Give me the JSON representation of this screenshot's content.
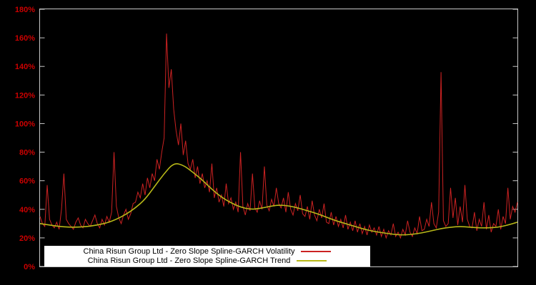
{
  "chart": {
    "background": "#000000",
    "axis_color": "#c8c8c8",
    "tick_label_color": "#cc0000",
    "y_tick_labels": [
      "0%",
      "20%",
      "40%",
      "60%",
      "80%",
      "100%",
      "120%",
      "140%",
      "160%",
      "180%"
    ],
    "legend": {
      "background": "#ffffff",
      "text_color": "#000000",
      "entries": [
        {
          "label": "China Risun Group Ltd - Zero Slope Spline-GARCH Volatility",
          "color": "#cc2222"
        },
        {
          "label": "China Risun Group Ltd - Zero Slope Spline-GARCH Trend",
          "color": "#b8b818"
        }
      ]
    }
  },
  "chart_data": {
    "type": "line",
    "title": "",
    "xlabel": "",
    "ylabel": "",
    "x_range": [
      0,
      100
    ],
    "ylim": [
      0,
      180
    ],
    "y_tick_step": 20,
    "y_unit": "%",
    "grid": false,
    "x_tick_labels_visible": false,
    "legend_position": "bottom-center",
    "series": [
      {
        "name": "China Risun Group Ltd - Zero Slope Spline-GARCH Volatility",
        "color": "#cc2222",
        "style": "jagged",
        "values": [
          35,
          30,
          28,
          57,
          33,
          29,
          27,
          31,
          26,
          40,
          65,
          33,
          30,
          28,
          26,
          31,
          34,
          29,
          27,
          33,
          30,
          28,
          32,
          36,
          30,
          27,
          33,
          29,
          35,
          31,
          38,
          80,
          42,
          34,
          30,
          36,
          40,
          33,
          37,
          44,
          45,
          52,
          48,
          58,
          50,
          62,
          55,
          65,
          60,
          75,
          68,
          80,
          90,
          163,
          125,
          138,
          110,
          95,
          85,
          100,
          78,
          88,
          72,
          68,
          75,
          62,
          70,
          58,
          65,
          55,
          60,
          52,
          72,
          48,
          55,
          45,
          50,
          42,
          58,
          44,
          48,
          40,
          45,
          38,
          80,
          42,
          36,
          44,
          39,
          65,
          41,
          38,
          46,
          40,
          70,
          43,
          39,
          47,
          42,
          55,
          44,
          41,
          48,
          38,
          52,
          40,
          36,
          44,
          39,
          50,
          37,
          35,
          42,
          33,
          46,
          36,
          32,
          40,
          34,
          44,
          31,
          30,
          38,
          29,
          35,
          28,
          33,
          27,
          36,
          26,
          31,
          25,
          32,
          24,
          30,
          23,
          28,
          22,
          29,
          24,
          27,
          22,
          28,
          21,
          26,
          20,
          25,
          22,
          30,
          21,
          24,
          20,
          26,
          22,
          32,
          24,
          21,
          27,
          23,
          35,
          25,
          26,
          33,
          28,
          45,
          30,
          27,
          38,
          136,
          32,
          28,
          30,
          55,
          34,
          48,
          29,
          42,
          31,
          57,
          33,
          28,
          27,
          38,
          25,
          33,
          28,
          45,
          26,
          36,
          24,
          30,
          28,
          40,
          26,
          35,
          30,
          55,
          33,
          42,
          38,
          45
        ]
      },
      {
        "name": "China Risun Group Ltd - Zero Slope Spline-GARCH Trend",
        "color": "#b8b818",
        "style": "smooth",
        "values": [
          30,
          29,
          28,
          27.5,
          27.5,
          28,
          29,
          30.5,
          33,
          36.5,
          41,
          47,
          56,
          65,
          72.5,
          71,
          66,
          60.5,
          54,
          48.5,
          44.5,
          41.5,
          40,
          40.5,
          42,
          43,
          42.5,
          41,
          39,
          37,
          34.5,
          32,
          30,
          28,
          26,
          24.5,
          23.5,
          22.5,
          22,
          22.5,
          23.5,
          25,
          26.5,
          27.5,
          28,
          27.5,
          27,
          27,
          27.5,
          29,
          31
        ]
      }
    ]
  }
}
